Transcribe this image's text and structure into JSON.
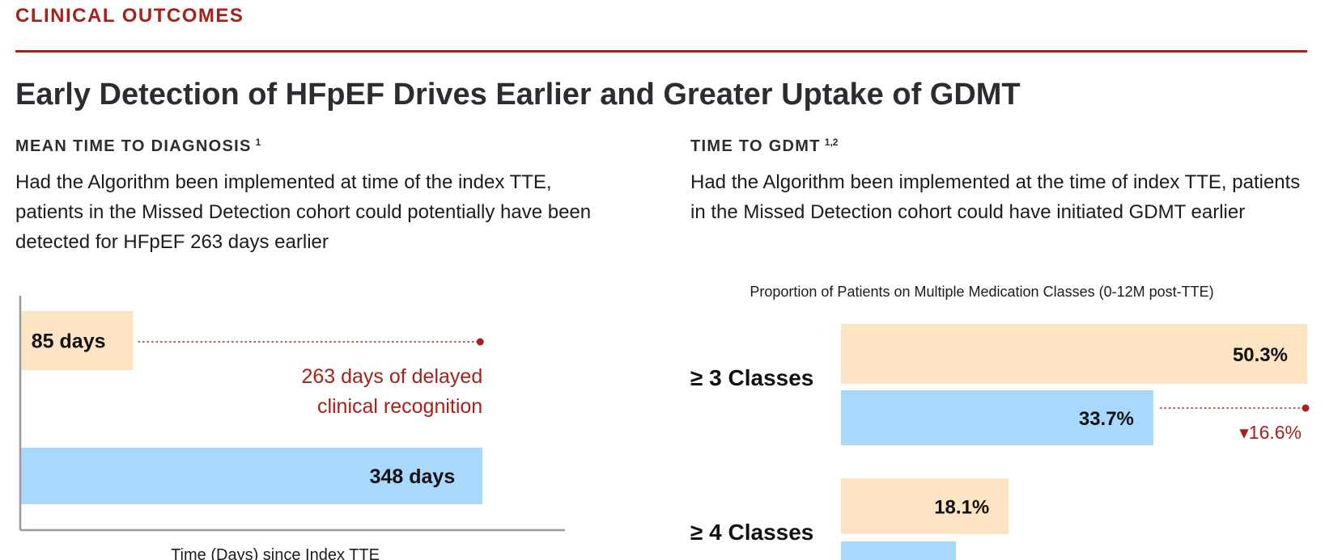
{
  "header": {
    "section_label": "CLINICAL OUTCOMES"
  },
  "headline": "Early Detection of HFpEF Drives Earlier and Greater Uptake of GDMT",
  "left": {
    "subtitle": "MEAN TIME TO DIAGNOSIS",
    "subtitle_ref": "1",
    "body": "Had the Algorithm been implemented at time of the index TTE, patients in the Missed Detection cohort could potentially have been detected for HFpEF 263 days earlier"
  },
  "right": {
    "subtitle": "TIME TO GDMT",
    "subtitle_ref": "1,2",
    "body": "Had the Algorithm been implemented at the time of index TTE, patients in the Missed Detection cohort could have initiated GDMT earlier"
  },
  "colors": {
    "accent": "#a8201a",
    "algorithm_bar": "#fde5c3",
    "missed_bar": "#a8d8fb",
    "text_dark": "#2b2d33"
  },
  "chart_data": [
    {
      "type": "bar",
      "orientation": "horizontal",
      "xlabel": "Time (Days) since Index TTE",
      "values": [
        85,
        348
      ],
      "value_labels": [
        "85 days",
        "348 days"
      ],
      "bar_colors": [
        "#fde5c3",
        "#a8d8fb"
      ],
      "xlim": [
        0,
        410
      ],
      "annotation": {
        "lines": [
          "263 days of delayed",
          "clinical recognition"
        ]
      },
      "grid": false
    },
    {
      "type": "bar",
      "orientation": "horizontal",
      "title": "Proportion of Patients on Multiple Medication Classes (0-12M post-TTE)",
      "categories": [
        "≥ 3 Classes",
        "≥ 4 Classes"
      ],
      "series": [
        {
          "values": [
            50.3,
            18.1
          ],
          "labels": [
            "50.3%",
            "18.1%"
          ],
          "color": "#fde5c3"
        },
        {
          "values": [
            33.7,
            12.4
          ],
          "labels": [
            "33.7%",
            ""
          ],
          "color": "#a8d8fb"
        }
      ],
      "xlim": [
        0,
        50.3
      ],
      "annotation": {
        "label": "▾16.6%"
      },
      "grid": false
    }
  ]
}
